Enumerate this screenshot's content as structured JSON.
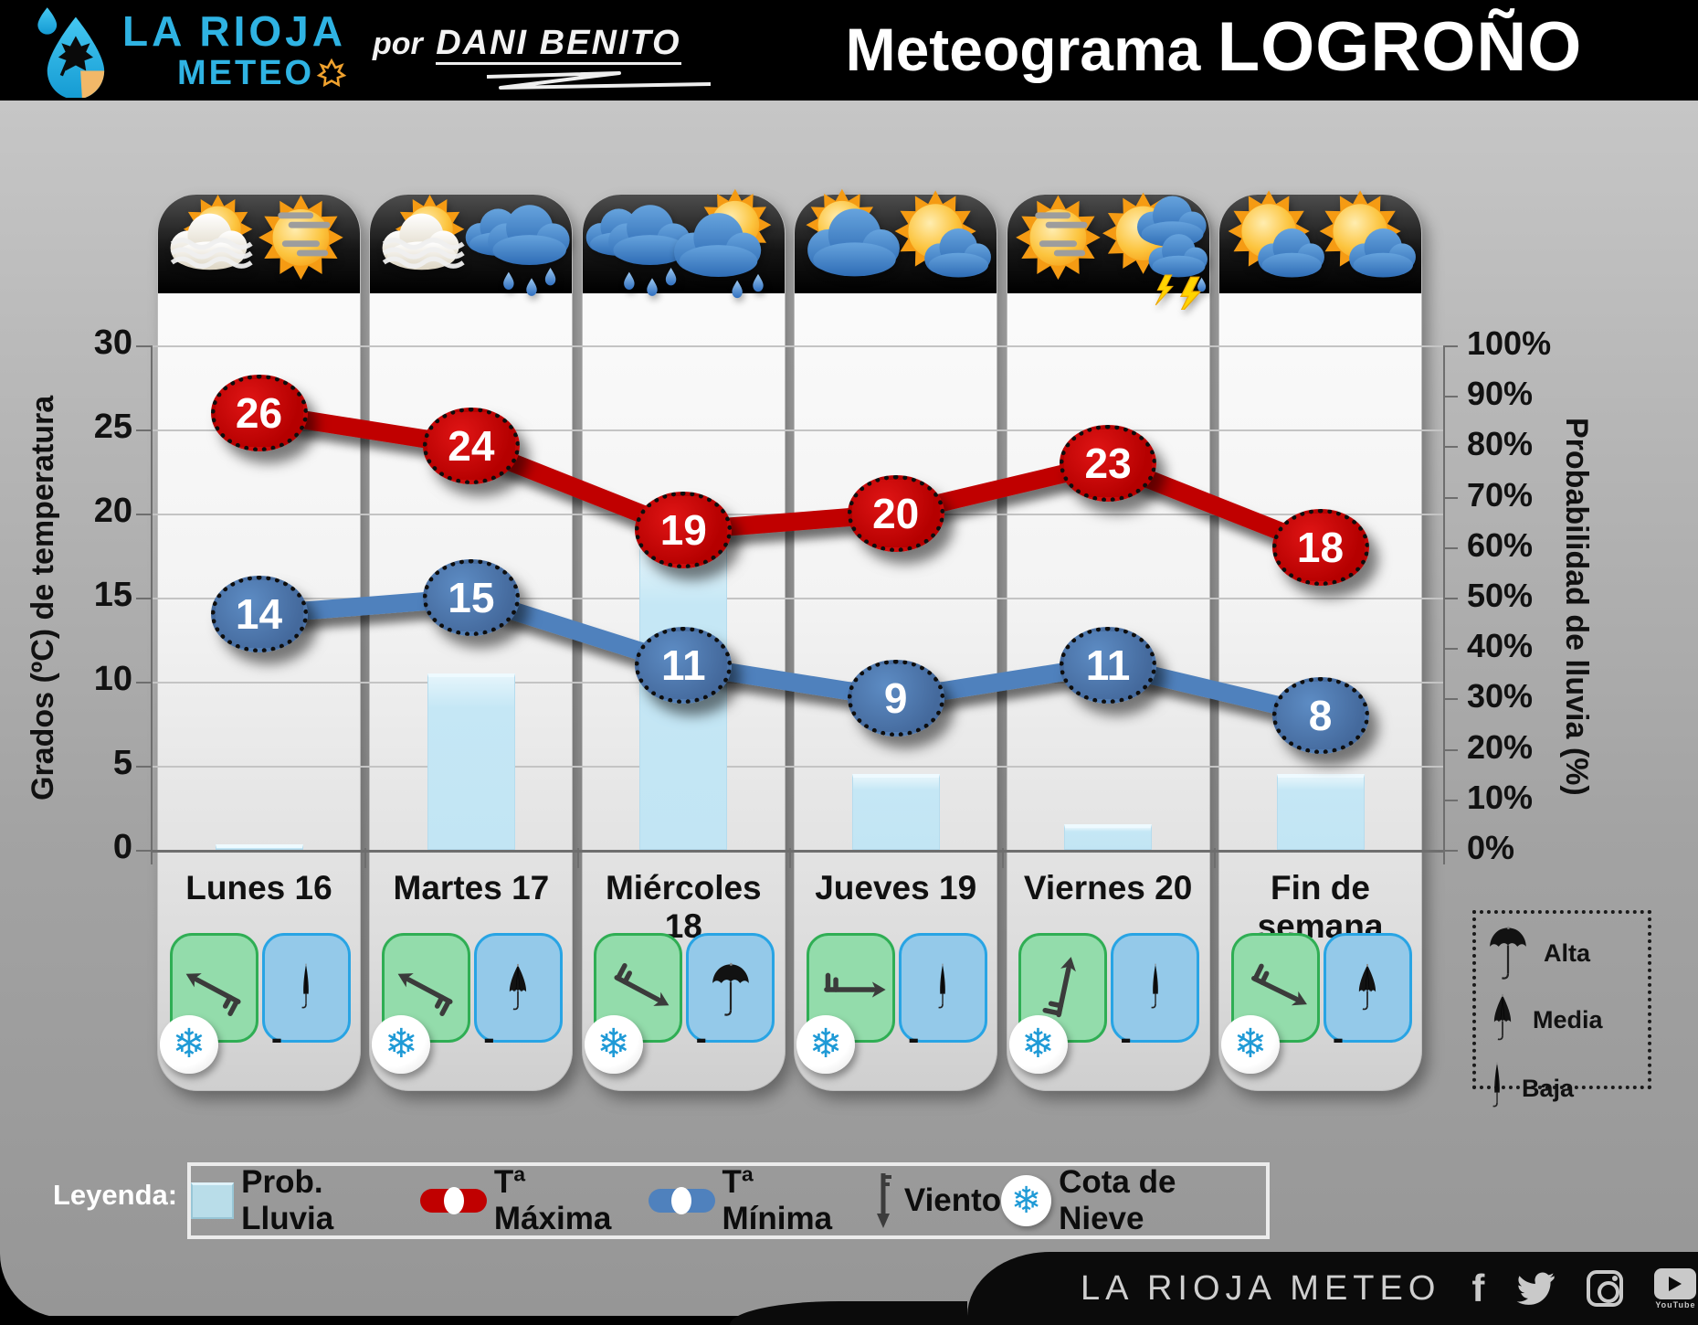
{
  "header": {
    "brand_line1": "LA RIOJA",
    "brand_line2": "METEO",
    "byline_prefix": "por",
    "byline_author": "DANI BENITO",
    "title_prefix": "Meteograma ",
    "title_city": "LOGROÑO"
  },
  "chart_data": {
    "type": "mixed",
    "categories": [
      "Lunes 16",
      "Martes 17",
      "Miércoles 18",
      "Jueves 19",
      "Viernes 20",
      "Fin de semana"
    ],
    "series": [
      {
        "name": "Prob. Lluvia",
        "type": "bar",
        "axis": "right",
        "unit": "%",
        "color": "#c5e7f5",
        "values": [
          1,
          35,
          60,
          15,
          5,
          15
        ]
      },
      {
        "name": "Tª Máxima",
        "type": "line",
        "axis": "left",
        "unit": "ºC",
        "color": "#c00000",
        "values": [
          26,
          24,
          19,
          20,
          23,
          18
        ]
      },
      {
        "name": "Tª Mínima",
        "type": "line",
        "axis": "left",
        "unit": "ºC",
        "color": "#4f81bd",
        "values": [
          14,
          15,
          11,
          9,
          11,
          8
        ]
      }
    ],
    "left_axis": {
      "title": "Grados (ºC) de temperatura",
      "min": 0,
      "max": 30,
      "step": 5
    },
    "right_axis": {
      "title": "Probabilidad de lluvia (%)",
      "min": 0,
      "max": 100,
      "step": 10,
      "suffix": "%"
    },
    "grid": true,
    "legend_position": "bottom"
  },
  "days": [
    {
      "label": "Lunes 16",
      "icons": [
        "sun-fog",
        "sun-haze"
      ],
      "wind_arrow_deg": -152,
      "umbrella": "baja",
      "snow_level": "-"
    },
    {
      "label": "Martes 17",
      "icons": [
        "sun-fog",
        "rain-cloud"
      ],
      "wind_arrow_deg": -152,
      "umbrella": "media",
      "snow_level": "-"
    },
    {
      "label": "Miércoles 18",
      "icons": [
        "rain-cloud",
        "sun-cloud-rain"
      ],
      "wind_arrow_deg": 28,
      "umbrella": "alta",
      "snow_level": "-"
    },
    {
      "label": "Jueves 19",
      "icons": [
        "cloud-sun",
        "sun-cloud"
      ],
      "wind_arrow_deg": 0,
      "umbrella": "baja",
      "snow_level": "-"
    },
    {
      "label": "Viernes 20",
      "icons": [
        "sun-haze",
        "storm-cloud"
      ],
      "wind_arrow_deg": -78,
      "umbrella": "baja",
      "snow_level": "-"
    },
    {
      "label": "Fin de semana",
      "icons": [
        "sun-cloud",
        "sun-cloud"
      ],
      "wind_arrow_deg": 26,
      "umbrella": "media",
      "snow_level": "-"
    }
  ],
  "umbrella_legend": {
    "alta": "Alta",
    "media": "Media",
    "baja": "Baja"
  },
  "legend": {
    "intro": "Leyenda:",
    "rain": "Prob. Lluvia",
    "tmax": "Tª Máxima",
    "tmin": "Tª Mínima",
    "wind": "Viento",
    "snow": "Cota de Nieve"
  },
  "footer": {
    "brand": "LA RIOJA METEO",
    "youtube_caption": "YouTube",
    "social": [
      "facebook",
      "twitter",
      "instagram",
      "youtube",
      "google"
    ]
  },
  "colors": {
    "tmax": "#c00000",
    "tmin": "#4f81bd",
    "rain_bar": "#c5e7f5",
    "brand_blue": "#2fb3e3",
    "snowflake_blue": "#1f9ad6",
    "wind_box_green": "#93dcab",
    "umbrella_box_blue": "#94c9e9"
  }
}
